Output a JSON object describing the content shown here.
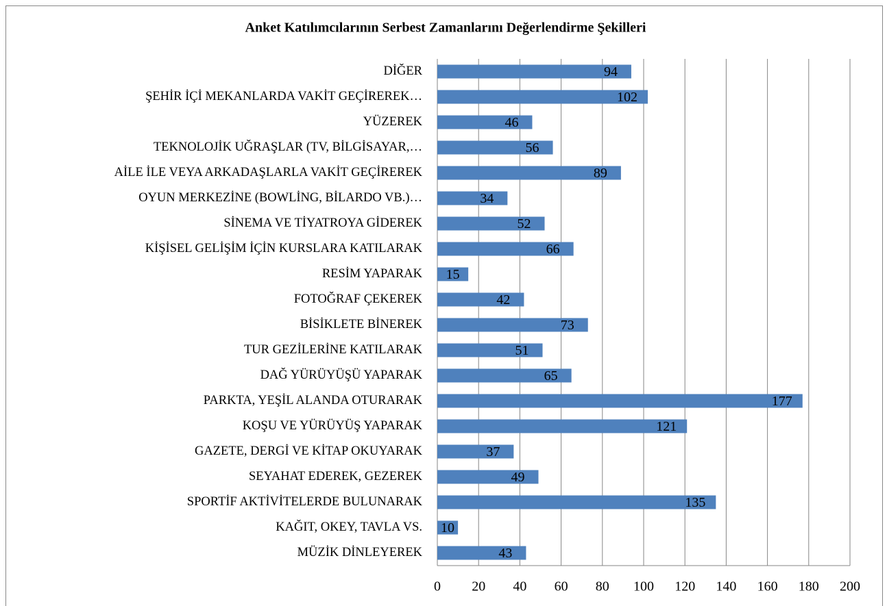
{
  "chart_data": {
    "type": "bar",
    "orientation": "horizontal",
    "title": "Anket Katılımcılarının Serbest Zamanlarını Değerlendirme Şekilleri",
    "categories": [
      "DİĞER",
      "ŞEHİR İÇİ MEKANLARDA VAKİT GEÇİREREK…",
      "YÜZEREK",
      "TEKNOLOJİK UĞRAŞLAR (TV, BİLGİSAYAR,…",
      "AİLE İLE VEYA ARKADAŞLARLA VAKİT GEÇİREREK",
      "OYUN MERKEZİNE (BOWLİNG, BİLARDO VB.)…",
      "SİNEMA VE TİYATROYA GİDEREK",
      "KİŞİSEL GELİŞİM İÇİN KURSLARA KATILARAK",
      "RESİM YAPARAK",
      "FOTOĞRAF ÇEKEREK",
      "BİSİKLETE BİNEREK",
      "TUR GEZİLERİNE KATILARAK",
      "DAĞ YÜRÜYÜŞÜ YAPARAK",
      "PARKTA, YEŞİL ALANDA OTURARAK",
      "KOŞU VE YÜRÜYÜŞ YAPARAK",
      "GAZETE, DERGİ VE KİTAP OKUYARAK",
      "SEYAHAT EDEREK, GEZEREK",
      "SPORTİF AKTİVİTELERDE BULUNARAK",
      "KAĞIT, OKEY, TAVLA VS.",
      "MÜZİK DİNLEYEREK"
    ],
    "values": [
      94,
      102,
      46,
      56,
      89,
      34,
      52,
      66,
      15,
      42,
      73,
      51,
      65,
      177,
      121,
      37,
      49,
      135,
      10,
      43
    ],
    "color": "#4f81bd",
    "xlim": [
      0,
      200
    ],
    "xticks": [
      0,
      20,
      40,
      60,
      80,
      100,
      120,
      140,
      160,
      180,
      200
    ],
    "grid": true
  }
}
